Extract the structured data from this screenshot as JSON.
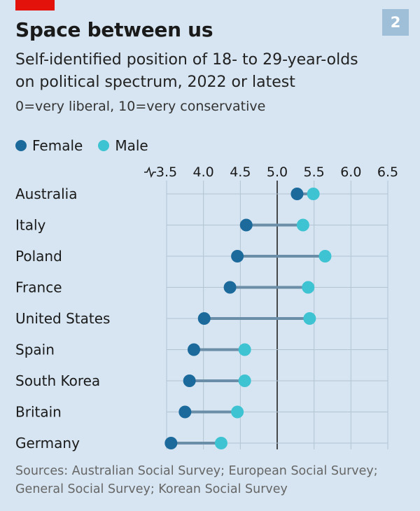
{
  "header": {
    "title": "Space between us",
    "subtitle": "Self-identified position of 18- to 29-year-olds on political spectrum, 2022 or latest",
    "note": "0=very liberal, 10=very conservative",
    "figure_number": "2"
  },
  "legend": {
    "female_label": "Female",
    "male_label": "Male"
  },
  "colors": {
    "female": "#1c6a9c",
    "male": "#3ec3d2",
    "connector": "#6b8ea8",
    "background": "#d6e5f1",
    "grid": "#b3c4d3",
    "reference": "#222222",
    "accent_red": "#e3120b"
  },
  "source": "Sources: Australian Social Survey; European Social Survey; General Social Survey; Korean Social Survey",
  "chart_data": {
    "type": "scatter",
    "subtype": "dumbbell",
    "title": "Space between us",
    "xlabel": "",
    "ylabel": "",
    "x_ticks": [
      "3.5",
      "4.0",
      "4.5",
      "5.0",
      "5.5",
      "6.0",
      "6.5"
    ],
    "x_axis_break_marker": true,
    "xlim": [
      3.5,
      6.5
    ],
    "reference_line": 5.0,
    "grid": true,
    "legend_position": "top-left",
    "categories": [
      "Australia",
      "Italy",
      "Poland",
      "France",
      "United States",
      "Spain",
      "South Korea",
      "Britain",
      "Germany"
    ],
    "series": [
      {
        "name": "Female",
        "values": [
          5.27,
          4.58,
          4.46,
          4.36,
          4.01,
          3.87,
          3.81,
          3.75,
          3.56
        ]
      },
      {
        "name": "Male",
        "values": [
          5.49,
          5.35,
          5.65,
          5.42,
          5.44,
          4.56,
          4.56,
          4.46,
          4.24
        ]
      }
    ]
  }
}
